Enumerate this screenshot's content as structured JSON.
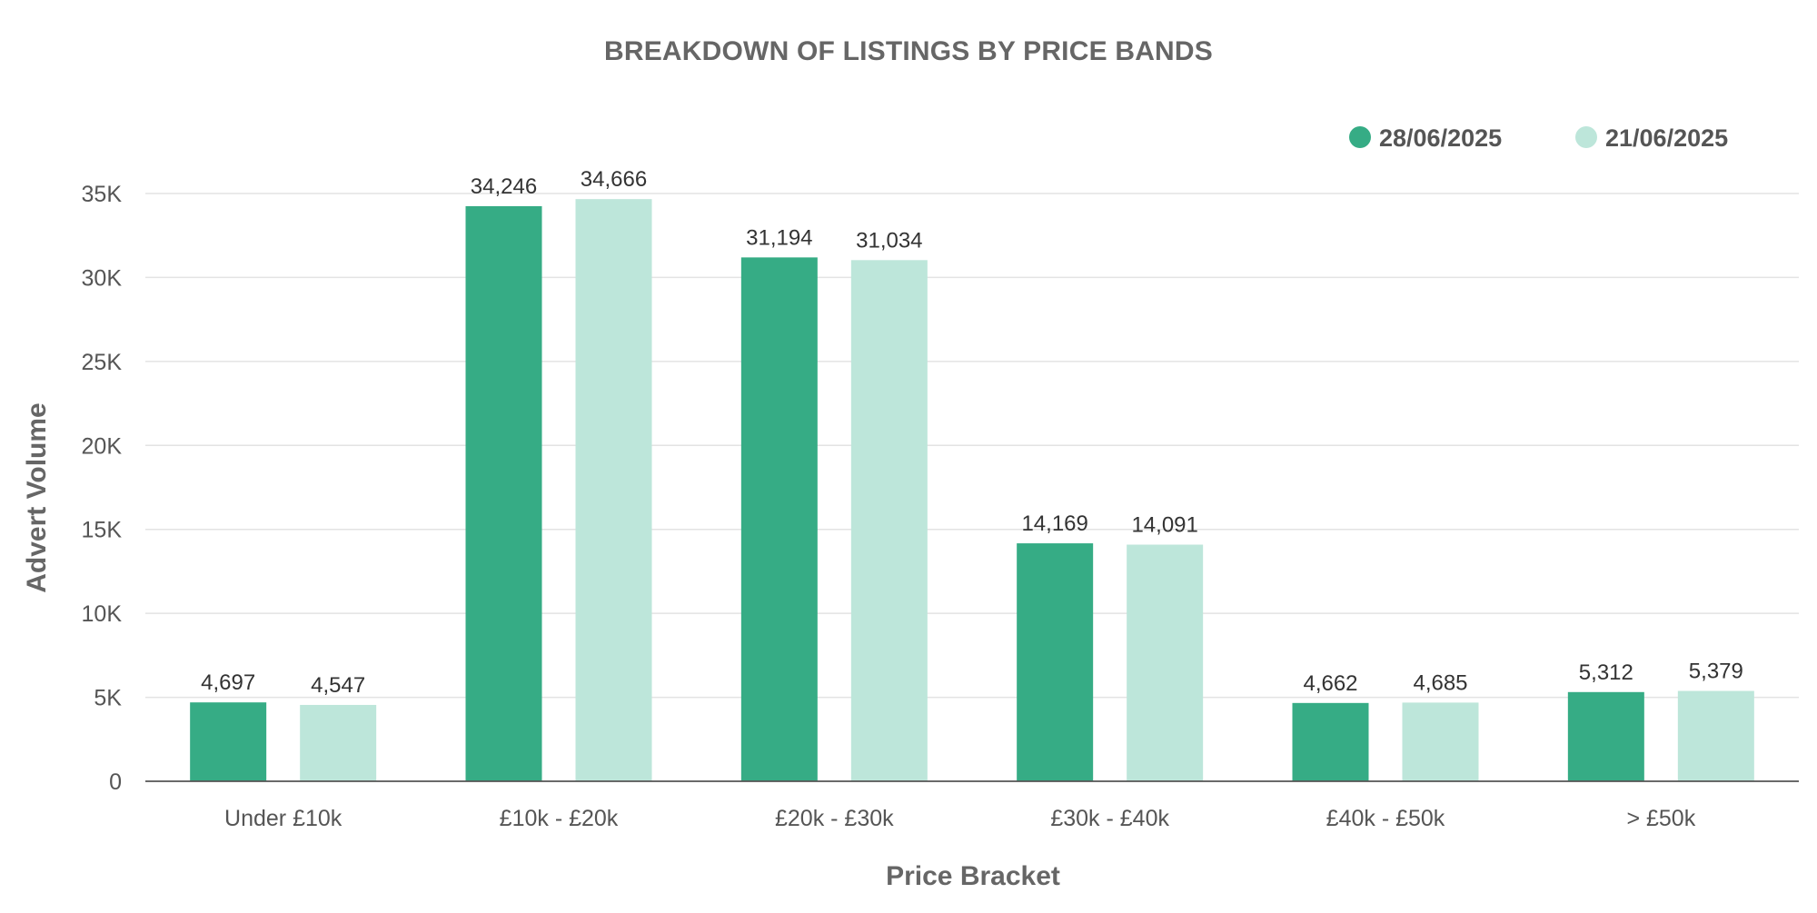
{
  "chart_data": {
    "type": "bar",
    "title": "BREAKDOWN OF LISTINGS BY PRICE BANDS",
    "xlabel": "Price Bracket",
    "ylabel": "Advert Volume",
    "categories": [
      "Under £10k",
      "£10k - £20k",
      "£20k - £30k",
      "£30k - £40k",
      "£40k - £50k",
      "> £50k"
    ],
    "series": [
      {
        "name": "28/06/2025",
        "color": "#36ac85",
        "values": [
          4697,
          34246,
          31194,
          14169,
          4662,
          5312
        ]
      },
      {
        "name": "21/06/2025",
        "color": "#bde6da",
        "values": [
          4547,
          34666,
          31034,
          14091,
          4685,
          5379
        ]
      }
    ],
    "data_labels": [
      [
        "4,697",
        "34,246",
        "31,194",
        "14,169",
        "4,662",
        "5,312"
      ],
      [
        "4,547",
        "34,666",
        "31,034",
        "14,091",
        "4,685",
        "5,379"
      ]
    ],
    "yticks": [
      0,
      5000,
      10000,
      15000,
      20000,
      25000,
      30000,
      35000
    ],
    "ytick_labels": [
      "0",
      "5K",
      "10K",
      "15K",
      "20K",
      "25K",
      "30K",
      "35K"
    ],
    "ylim": [
      0,
      35000
    ],
    "grid": true,
    "legend_position": "top-right"
  }
}
